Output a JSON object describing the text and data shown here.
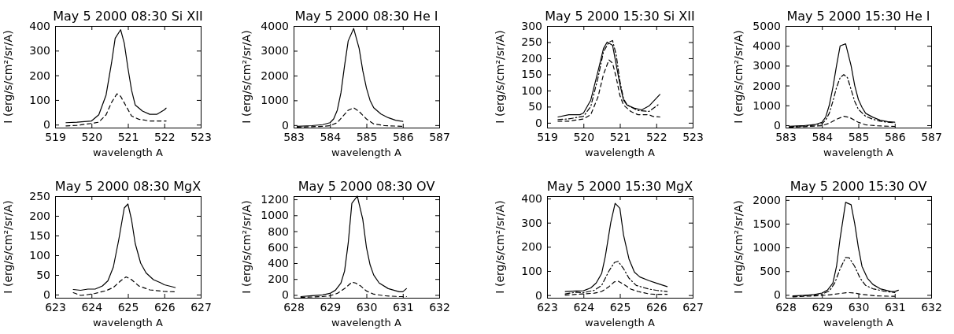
{
  "chart_data": [
    {
      "type": "line",
      "title": "May 5 2000 08:30 Si XII",
      "xlabel": "wavelength A",
      "ylabel": "I (erg/s/cm²/sr/A)",
      "xlim": [
        519,
        523
      ],
      "xticks": [
        519,
        520,
        521,
        522,
        523
      ],
      "ylim": [
        -12,
        400
      ],
      "yticks": [
        0,
        100,
        200,
        300,
        400
      ],
      "series": [
        {
          "color": "#000000",
          "line_style": "solid",
          "x": [
            519.3,
            519.6,
            520.0,
            520.2,
            520.4,
            520.55,
            520.65,
            520.8,
            520.9,
            521.0,
            521.1,
            521.2,
            521.4,
            521.6,
            521.8,
            522.0,
            522.05
          ],
          "values": [
            8,
            10,
            15,
            40,
            120,
            250,
            350,
            385,
            330,
            230,
            140,
            80,
            55,
            42,
            42,
            60,
            67
          ]
        },
        {
          "color": "#000000",
          "line_style": "dashed",
          "x": [
            519.3,
            519.6,
            520.0,
            520.2,
            520.4,
            520.55,
            520.7,
            520.8,
            520.95,
            521.1,
            521.3,
            521.6,
            522.05
          ],
          "values": [
            -5,
            -3,
            5,
            10,
            40,
            90,
            125,
            115,
            75,
            35,
            22,
            15,
            15
          ]
        }
      ]
    },
    {
      "type": "line",
      "title": "May 5 2000 08:30 He I",
      "xlabel": "wavelength A",
      "ylabel": "I (erg/s/cm²/sr/A)",
      "xlim": [
        583,
        587
      ],
      "xticks": [
        583,
        584,
        585,
        586,
        587
      ],
      "ylim": [
        -100,
        4000
      ],
      "yticks": [
        0,
        1000,
        2000,
        3000,
        4000
      ],
      "series": [
        {
          "color": "#000000",
          "line_style": "solid",
          "x": [
            583.1,
            583.5,
            583.8,
            584.0,
            584.1,
            584.2,
            584.3,
            584.4,
            584.5,
            584.65,
            584.8,
            584.9,
            585.0,
            585.1,
            585.2,
            585.4,
            585.6,
            585.8,
            586.0
          ],
          "values": [
            -50,
            -20,
            20,
            100,
            250,
            600,
            1300,
            2400,
            3400,
            3900,
            3100,
            2200,
            1500,
            1000,
            700,
            450,
            300,
            200,
            150
          ]
        },
        {
          "color": "#000000",
          "line_style": "dashed",
          "x": [
            583.1,
            583.8,
            584.0,
            584.2,
            584.35,
            584.5,
            584.65,
            584.8,
            585.0,
            585.2,
            585.5,
            586.0
          ],
          "values": [
            -80,
            -50,
            -20,
            100,
            350,
            600,
            700,
            550,
            250,
            50,
            -20,
            -50
          ]
        }
      ]
    },
    {
      "type": "line",
      "title": "May 5 2000 15:30 Si XII",
      "xlabel": "wavelength A",
      "ylabel": "I (erg/s/cm²/sr/A)",
      "xlim": [
        519,
        523
      ],
      "xticks": [
        519,
        520,
        521,
        522,
        523
      ],
      "ylim": [
        -15,
        300
      ],
      "yticks": [
        0,
        50,
        100,
        150,
        200,
        250,
        300
      ],
      "series": [
        {
          "color": "#000000",
          "line_style": "solid",
          "x": [
            519.3,
            519.6,
            519.9,
            520.0,
            520.2,
            520.4,
            520.55,
            520.65,
            520.8,
            520.9,
            521.0,
            521.1,
            521.2,
            521.4,
            521.6,
            521.8,
            522.1
          ],
          "values": [
            18,
            25,
            25,
            30,
            70,
            160,
            230,
            250,
            240,
            180,
            120,
            70,
            55,
            45,
            40,
            52,
            88
          ]
        },
        {
          "color": "#000000",
          "line_style": "dashdot",
          "x": [
            519.3,
            519.6,
            520.0,
            520.2,
            520.4,
            520.55,
            520.7,
            520.8,
            520.9,
            521.0,
            521.1,
            521.2,
            521.5,
            521.8,
            522.1
          ],
          "values": [
            10,
            12,
            20,
            50,
            140,
            220,
            250,
            255,
            210,
            130,
            75,
            55,
            38,
            35,
            60
          ]
        },
        {
          "color": "#000000",
          "line_style": "dashed",
          "x": [
            519.3,
            519.6,
            520.0,
            520.2,
            520.4,
            520.55,
            520.7,
            520.8,
            520.9,
            521.0,
            521.1,
            521.3,
            521.5,
            521.8,
            521.9,
            522.1
          ],
          "values": [
            5,
            5,
            12,
            25,
            80,
            150,
            195,
            185,
            140,
            85,
            55,
            35,
            25,
            25,
            20,
            18
          ]
        }
      ]
    },
    {
      "type": "line",
      "title": "May 5 2000 15:30 He I",
      "xlabel": "wavelength A",
      "ylabel": "I (erg/s/cm²/sr/A)",
      "xlim": [
        583,
        587
      ],
      "xticks": [
        583,
        584,
        585,
        586,
        587
      ],
      "ylim": [
        -120,
        5000
      ],
      "yticks": [
        0,
        1000,
        2000,
        3000,
        4000,
        5000
      ],
      "series": [
        {
          "color": "#000000",
          "line_style": "solid",
          "x": [
            583.1,
            583.5,
            583.8,
            584.0,
            584.1,
            584.2,
            584.3,
            584.4,
            584.5,
            584.65,
            584.8,
            584.9,
            585.0,
            585.1,
            585.2,
            585.4,
            585.6,
            585.8,
            586.0
          ],
          "values": [
            -50,
            -20,
            30,
            150,
            400,
            1000,
            1900,
            3000,
            4000,
            4100,
            3000,
            2000,
            1300,
            900,
            600,
            400,
            250,
            180,
            150
          ]
        },
        {
          "color": "#000000",
          "line_style": "dashdot",
          "x": [
            583.1,
            583.8,
            584.0,
            584.1,
            584.2,
            584.3,
            584.4,
            584.5,
            584.6,
            584.7,
            584.8,
            584.9,
            585.0,
            585.2,
            585.4,
            585.6,
            585.8,
            586.0
          ],
          "values": [
            -80,
            0,
            80,
            250,
            600,
            1200,
            1900,
            2400,
            2550,
            2400,
            1800,
            1200,
            800,
            450,
            300,
            200,
            150,
            120
          ]
        },
        {
          "color": "#000000",
          "line_style": "dashed",
          "x": [
            583.1,
            583.8,
            584.0,
            584.2,
            584.4,
            584.6,
            584.75,
            585.0,
            585.2,
            585.5,
            586.0
          ],
          "values": [
            -100,
            -50,
            -20,
            100,
            300,
            450,
            400,
            150,
            20,
            -30,
            -60
          ]
        }
      ]
    },
    {
      "type": "line",
      "title": "May 5 2000 08:30 MgX",
      "xlabel": "wavelength A",
      "ylabel": "I (erg/s/cm²/sr/A)",
      "xlim": [
        623,
        627
      ],
      "xticks": [
        623,
        624,
        625,
        626,
        627
      ],
      "ylim": [
        -8,
        250
      ],
      "yticks": [
        0,
        50,
        100,
        150,
        200,
        250
      ],
      "series": [
        {
          "color": "#000000",
          "line_style": "solid",
          "x": [
            623.5,
            623.7,
            623.9,
            624.1,
            624.3,
            624.45,
            624.6,
            624.75,
            624.9,
            625.0,
            625.1,
            625.2,
            625.35,
            625.5,
            625.7,
            625.9,
            626.0,
            626.3
          ],
          "values": [
            13,
            11,
            14,
            14,
            22,
            35,
            70,
            140,
            220,
            230,
            190,
            130,
            80,
            55,
            38,
            30,
            25,
            18
          ]
        },
        {
          "color": "#000000",
          "line_style": "dashed",
          "x": [
            623.5,
            623.7,
            623.9,
            624.1,
            624.4,
            624.6,
            624.8,
            624.95,
            625.1,
            625.3,
            625.6,
            626.0,
            626.3
          ],
          "values": [
            5,
            -2,
            0,
            3,
            10,
            18,
            35,
            45,
            38,
            22,
            12,
            8,
            7
          ]
        }
      ]
    },
    {
      "type": "line",
      "title": "May 5 2000 08:30 OV",
      "xlabel": "wavelength A",
      "ylabel": "I (erg/s/cm²/sr/A)",
      "xlim": [
        628,
        632
      ],
      "xticks": [
        628,
        629,
        630,
        631,
        632
      ],
      "ylim": [
        -35,
        1240
      ],
      "yticks": [
        0,
        200,
        400,
        600,
        800,
        1000,
        1200
      ],
      "series": [
        {
          "color": "#000000",
          "line_style": "solid",
          "x": [
            628.2,
            628.5,
            628.8,
            629.0,
            629.15,
            629.3,
            629.4,
            629.5,
            629.6,
            629.75,
            629.9,
            630.0,
            630.1,
            630.2,
            630.35,
            630.6,
            630.9,
            631.0,
            631.1
          ],
          "values": [
            -20,
            -10,
            0,
            20,
            60,
            150,
            300,
            650,
            1150,
            1240,
            950,
            600,
            380,
            250,
            150,
            80,
            40,
            40,
            80
          ]
        },
        {
          "color": "#000000",
          "line_style": "dashed",
          "x": [
            628.2,
            628.8,
            629.0,
            629.2,
            629.4,
            629.6,
            629.7,
            629.85,
            630.0,
            630.2,
            630.5,
            630.9,
            631.1
          ],
          "values": [
            -30,
            -20,
            -10,
            20,
            80,
            160,
            150,
            110,
            50,
            10,
            -10,
            -20,
            -20
          ]
        }
      ]
    },
    {
      "type": "line",
      "title": "May 5 2000 15:30 MgX",
      "xlabel": "wavelength A",
      "ylabel": "I (erg/s/cm²/sr/A)",
      "xlim": [
        623,
        627
      ],
      "xticks": [
        623,
        624,
        625,
        626,
        627
      ],
      "ylim": [
        -11,
        410
      ],
      "yticks": [
        0,
        100,
        200,
        300,
        400
      ],
      "series": [
        {
          "color": "#000000",
          "line_style": "solid",
          "x": [
            623.5,
            623.8,
            624.0,
            624.2,
            624.35,
            624.5,
            624.6,
            624.75,
            624.87,
            625.0,
            625.1,
            625.25,
            625.4,
            625.55,
            625.8,
            626.0,
            626.3
          ],
          "values": [
            15,
            17,
            18,
            30,
            50,
            90,
            160,
            300,
            380,
            360,
            250,
            150,
            95,
            75,
            60,
            50,
            35
          ]
        },
        {
          "color": "#000000",
          "line_style": "dashdot",
          "x": [
            623.5,
            623.8,
            624.0,
            624.3,
            624.5,
            624.7,
            624.85,
            624.95,
            625.1,
            625.25,
            625.45,
            625.8,
            626.0,
            626.3
          ],
          "values": [
            5,
            12,
            10,
            20,
            40,
            100,
            135,
            140,
            110,
            70,
            40,
            25,
            20,
            15
          ]
        },
        {
          "color": "#000000",
          "line_style": "dashed",
          "x": [
            623.5,
            623.8,
            624.0,
            624.3,
            624.5,
            624.7,
            624.85,
            624.95,
            625.1,
            625.3,
            625.5,
            625.8,
            626.0,
            626.3
          ],
          "values": [
            0,
            3,
            5,
            8,
            15,
            35,
            55,
            58,
            45,
            25,
            15,
            5,
            3,
            3
          ]
        }
      ]
    },
    {
      "type": "line",
      "title": "May 5 2000 15:30 OV",
      "xlabel": "wavelength A",
      "ylabel": "I (erg/s/cm²/sr/A)",
      "xlim": [
        628,
        632
      ],
      "xticks": [
        628,
        629,
        630,
        631,
        632
      ],
      "ylim": [
        -60,
        2080
      ],
      "yticks": [
        0,
        500,
        1000,
        1500,
        2000
      ],
      "series": [
        {
          "color": "#000000",
          "line_style": "solid",
          "x": [
            628.2,
            628.5,
            628.8,
            629.0,
            629.15,
            629.3,
            629.4,
            629.5,
            629.65,
            629.8,
            629.9,
            630.0,
            630.1,
            630.25,
            630.4,
            630.6,
            630.9,
            631.0,
            631.1
          ],
          "values": [
            -20,
            -10,
            10,
            40,
            100,
            250,
            600,
            1200,
            1950,
            1900,
            1500,
            1000,
            600,
            350,
            220,
            130,
            70,
            70,
            100
          ]
        },
        {
          "color": "#000000",
          "line_style": "dashdot",
          "x": [
            628.2,
            628.8,
            629.0,
            629.2,
            629.35,
            629.5,
            629.65,
            629.75,
            629.9,
            630.05,
            630.2,
            630.4,
            630.7,
            631.0
          ],
          "values": [
            -30,
            0,
            20,
            80,
            250,
            550,
            790,
            780,
            600,
            350,
            200,
            130,
            80,
            50
          ]
        },
        {
          "color": "#000000",
          "line_style": "dashed",
          "x": [
            628.2,
            628.8,
            629.2,
            629.5,
            629.7,
            629.9,
            630.1,
            630.5,
            631.0
          ],
          "values": [
            -40,
            -20,
            0,
            30,
            50,
            40,
            10,
            -20,
            -30
          ]
        }
      ]
    }
  ]
}
